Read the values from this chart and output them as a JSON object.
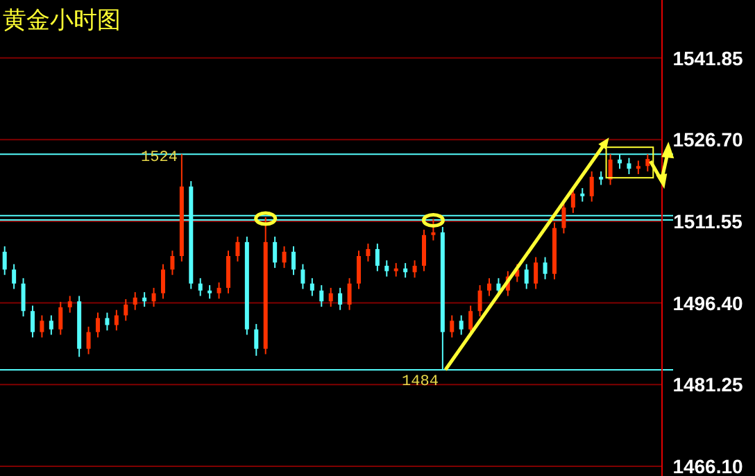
{
  "chart_data": {
    "type": "candlestick",
    "title": "黄金小时图",
    "categories": [
      null,
      null,
      null,
      null,
      null,
      null,
      null,
      null,
      null,
      null,
      null,
      null,
      null,
      null,
      null,
      null,
      null,
      null,
      null,
      null,
      null,
      null,
      null,
      null,
      null,
      null,
      null,
      null,
      null,
      null,
      null,
      null,
      null,
      null,
      null,
      null,
      null,
      null,
      null,
      null,
      null,
      null,
      null,
      null,
      null,
      null,
      null,
      null,
      null,
      null,
      null,
      null,
      null,
      null,
      null,
      null,
      null,
      null,
      null,
      null,
      null,
      null,
      null,
      null,
      null,
      null,
      null,
      null,
      null,
      null
    ],
    "ohlc": [
      [
        1505.9,
        1506.9,
        1501.6,
        1502.6
      ],
      [
        1502.6,
        1503.6,
        1499.0,
        1500.0
      ],
      [
        1500.0,
        1501.0,
        1493.9,
        1494.9
      ],
      [
        1494.9,
        1495.9,
        1490.0,
        1491.0
      ],
      [
        1491.0,
        1494.1,
        1490.0,
        1493.1
      ],
      [
        1493.1,
        1494.1,
        1490.5,
        1491.5
      ],
      [
        1491.5,
        1496.6,
        1490.5,
        1495.6
      ],
      [
        1495.6,
        1497.7,
        1494.6,
        1496.7
      ],
      [
        1496.7,
        1497.7,
        1486.4,
        1487.9
      ],
      [
        1487.9,
        1492.0,
        1486.9,
        1491.0
      ],
      [
        1491.0,
        1494.6,
        1490.0,
        1493.6
      ],
      [
        1493.6,
        1494.6,
        1491.3,
        1492.3
      ],
      [
        1492.3,
        1495.1,
        1491.3,
        1494.1
      ],
      [
        1494.1,
        1497.1,
        1493.1,
        1496.1
      ],
      [
        1496.1,
        1498.4,
        1495.1,
        1497.4
      ],
      [
        1497.4,
        1498.4,
        1495.7,
        1496.7
      ],
      [
        1496.7,
        1499.2,
        1495.7,
        1498.2
      ],
      [
        1498.2,
        1503.6,
        1497.2,
        1502.6
      ],
      [
        1502.6,
        1506.1,
        1501.6,
        1505.1
      ],
      [
        1505.1,
        1524.0,
        1504.1,
        1518.0
      ],
      [
        1518.0,
        1519.0,
        1499.0,
        1500.0
      ],
      [
        1500.0,
        1501.0,
        1497.7,
        1498.7
      ],
      [
        1498.7,
        1499.7,
        1497.2,
        1498.2
      ],
      [
        1498.2,
        1500.2,
        1497.2,
        1499.2
      ],
      [
        1499.2,
        1506.1,
        1498.2,
        1505.1
      ],
      [
        1505.1,
        1508.7,
        1504.1,
        1507.7
      ],
      [
        1507.7,
        1508.7,
        1490.5,
        1491.5
      ],
      [
        1491.5,
        1492.5,
        1486.6,
        1487.9
      ],
      [
        1487.9,
        1512.3,
        1486.9,
        1507.7
      ],
      [
        1507.7,
        1508.7,
        1502.9,
        1503.9
      ],
      [
        1503.9,
        1506.9,
        1502.9,
        1505.9
      ],
      [
        1505.9,
        1506.9,
        1501.6,
        1502.6
      ],
      [
        1502.6,
        1503.6,
        1499.0,
        1500.0
      ],
      [
        1500.0,
        1501.0,
        1497.7,
        1498.7
      ],
      [
        1498.7,
        1499.7,
        1495.7,
        1496.7
      ],
      [
        1496.7,
        1499.2,
        1495.7,
        1498.2
      ],
      [
        1498.2,
        1499.2,
        1495.1,
        1496.1
      ],
      [
        1496.1,
        1501.0,
        1495.1,
        1500.0
      ],
      [
        1500.0,
        1506.1,
        1499.0,
        1505.1
      ],
      [
        1505.1,
        1507.4,
        1504.1,
        1506.4
      ],
      [
        1506.4,
        1507.4,
        1502.3,
        1503.3
      ],
      [
        1503.3,
        1504.3,
        1501.3,
        1502.3
      ],
      [
        1502.3,
        1503.8,
        1501.3,
        1502.8
      ],
      [
        1502.8,
        1503.8,
        1501.1,
        1502.1
      ],
      [
        1502.1,
        1504.3,
        1501.1,
        1503.3
      ],
      [
        1503.3,
        1510.0,
        1502.3,
        1509.0
      ],
      [
        1509.0,
        1512.0,
        1508.0,
        1509.5
      ],
      [
        1509.5,
        1510.5,
        1484.0,
        1491.0
      ],
      [
        1491.0,
        1494.1,
        1490.0,
        1493.1
      ],
      [
        1493.1,
        1494.1,
        1490.5,
        1491.5
      ],
      [
        1491.5,
        1495.9,
        1490.5,
        1494.9
      ],
      [
        1494.9,
        1499.7,
        1493.9,
        1498.7
      ],
      [
        1498.7,
        1501.0,
        1497.7,
        1500.0
      ],
      [
        1500.0,
        1501.0,
        1497.7,
        1498.7
      ],
      [
        1498.7,
        1502.3,
        1497.7,
        1501.3
      ],
      [
        1501.3,
        1503.6,
        1500.3,
        1502.6
      ],
      [
        1502.6,
        1503.6,
        1499.0,
        1500.0
      ],
      [
        1500.0,
        1504.9,
        1499.0,
        1503.9
      ],
      [
        1503.9,
        1504.9,
        1500.8,
        1501.8
      ],
      [
        1501.8,
        1511.3,
        1500.8,
        1510.3
      ],
      [
        1510.3,
        1515.1,
        1509.3,
        1514.1
      ],
      [
        1514.1,
        1517.7,
        1513.1,
        1516.7
      ],
      [
        1516.7,
        1517.7,
        1515.2,
        1516.2
      ],
      [
        1516.2,
        1520.8,
        1515.2,
        1519.8
      ],
      [
        1519.8,
        1520.8,
        1518.3,
        1519.3
      ],
      [
        1519.3,
        1524.0,
        1518.3,
        1523.0
      ],
      [
        1523.0,
        1524.0,
        1521.3,
        1522.3
      ],
      [
        1522.3,
        1523.3,
        1520.3,
        1521.3
      ],
      [
        1521.3,
        1522.8,
        1520.3,
        1521.8
      ],
      [
        1521.8,
        1524.0,
        1520.8,
        1523.1
      ]
    ],
    "ylim": [
      1464.3,
      1552.6
    ],
    "yticks": [
      {
        "value": 1466.1,
        "label": "1466.10"
      },
      {
        "value": 1481.25,
        "label": "1481.25"
      },
      {
        "value": 1496.4,
        "label": "1496.40"
      },
      {
        "value": 1511.55,
        "label": "1511.55"
      },
      {
        "value": 1526.7,
        "label": "1526.70"
      },
      {
        "value": 1541.85,
        "label": "1541.85"
      }
    ],
    "tick_labels": "y",
    "grid": "y",
    "ref_lines": [
      {
        "axis": "y",
        "value": 1524,
        "color": "#54fcfc"
      },
      {
        "axis": "y",
        "value": 1512.6,
        "color": "#54fcfc"
      },
      {
        "axis": "y",
        "value": 1511.8,
        "color": "#54fcfc"
      },
      {
        "axis": "y",
        "value": 1484,
        "color": "#54fcfc"
      }
    ],
    "annotations": [
      {
        "text": "1524",
        "y": 1524
      },
      {
        "text": "1484",
        "y": 1484
      }
    ]
  }
}
